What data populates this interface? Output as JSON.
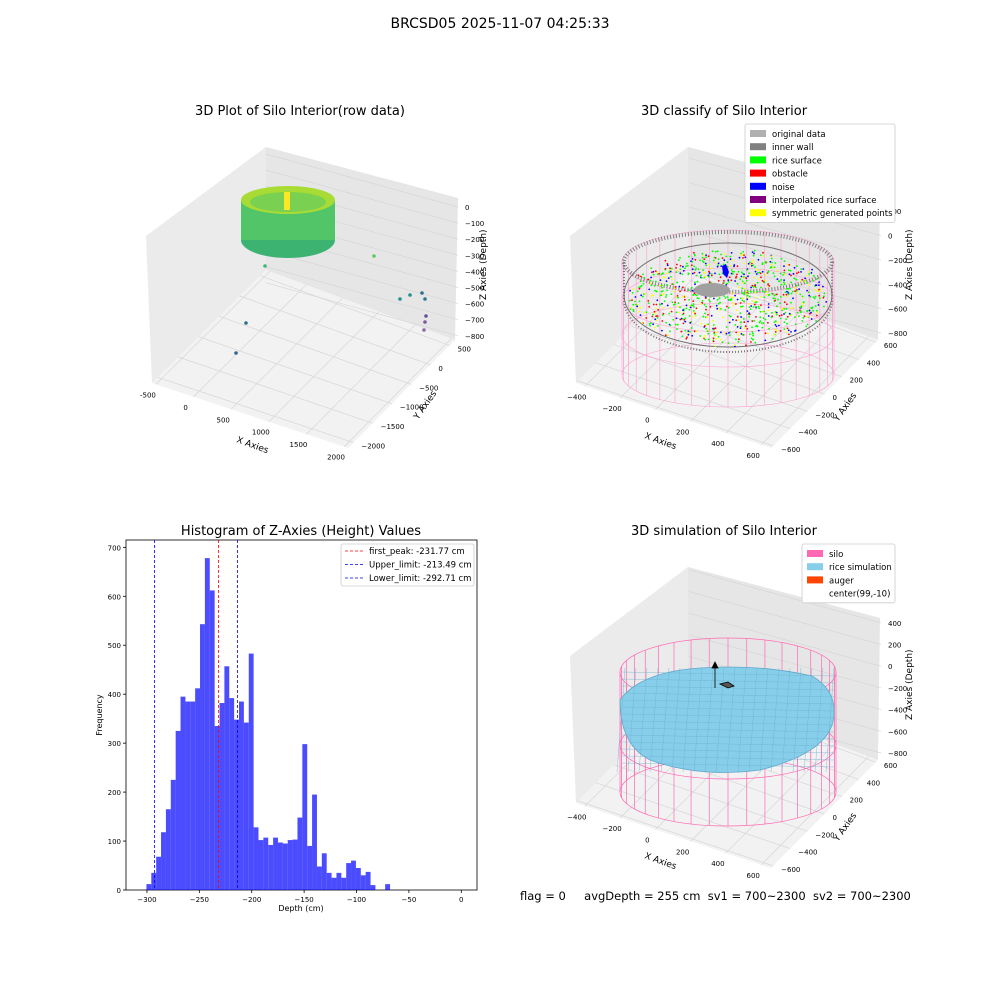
{
  "suptitle": "BRCSD05 2025-11-07 04:25:33",
  "footer": {
    "flag": "flag = 0",
    "avg_depth": "avgDepth = 255 cm",
    "sv1": "sv1 = 700~2300",
    "sv2": "sv2 = 700~2300"
  },
  "chart_data": [
    {
      "type": "scatter",
      "title": "3D Plot of Silo Interior(row data)",
      "xlabel": "X Axies",
      "ylabel": "Y Axies",
      "zlabel": "Z Axies (Depth)",
      "x_ticks": [
        "-500",
        "0",
        "500",
        "1000",
        "1500",
        "2000"
      ],
      "y_ticks": [
        "500",
        "0",
        "−500",
        "−1000",
        "−1500",
        "−2000"
      ],
      "z_ticks": [
        "0",
        "−100",
        "−200",
        "−300",
        "−400",
        "−500",
        "−600",
        "−700",
        "−800"
      ],
      "colormap": "viridis"
    },
    {
      "type": "scatter",
      "title": "3D classify of Silo Interior",
      "xlabel": "X Axies",
      "ylabel": "Y Axies",
      "zlabel": "Z Axies (Depth)",
      "x_ticks": [
        "−400",
        "−200",
        "0",
        "200",
        "400",
        "600"
      ],
      "y_ticks": [
        "600",
        "400",
        "200",
        "0",
        "−200",
        "−400",
        "−600"
      ],
      "z_ticks": [
        "200",
        "0",
        "−200",
        "−400",
        "−600",
        "−800"
      ],
      "legend": [
        {
          "label": "original data",
          "color": "#b0b0b0"
        },
        {
          "label": "inner wall",
          "color": "#808080"
        },
        {
          "label": "rice surface",
          "color": "#00ff00"
        },
        {
          "label": "obstacle",
          "color": "#ff0000"
        },
        {
          "label": "noise",
          "color": "#0000ff"
        },
        {
          "label": "interpolated rice surface",
          "color": "#800080"
        },
        {
          "label": "symmetric generated points",
          "color": "#ffff00"
        }
      ]
    },
    {
      "type": "bar",
      "title": "Histogram of Z-Axies (Height) Values",
      "xlabel": "Depth (cm)",
      "ylabel": "Frequency",
      "xlim": [
        -320,
        15
      ],
      "ylim": [
        0,
        715
      ],
      "x_ticks": [
        -300,
        -250,
        -200,
        -150,
        -100,
        -50,
        0
      ],
      "y_ticks": [
        0,
        100,
        200,
        300,
        400,
        500,
        600,
        700
      ],
      "bar_color": "#0000ff",
      "bin_start": -300.5,
      "bin_width": 4.65,
      "values": [
        12,
        35,
        68,
        118,
        165,
        225,
        325,
        395,
        385,
        385,
        412,
        543,
        678,
        612,
        335,
        382,
        457,
        392,
        348,
        385,
        342,
        483,
        128,
        102,
        107,
        92,
        107,
        97,
        95,
        102,
        103,
        148,
        298,
        90,
        195,
        48,
        75,
        35,
        25,
        35,
        25,
        55,
        60,
        45,
        30,
        37,
        10,
        0,
        0,
        12
      ],
      "lines": [
        {
          "label": "first_peak: -231.77 cm",
          "value": -231.77,
          "color": "#ff0000"
        },
        {
          "label": "Upper_limit: -213.49 cm",
          "value": -213.49,
          "color": "#0000ff"
        },
        {
          "label": "Lower_limit: -292.71 cm",
          "value": -292.71,
          "color": "#0000ff"
        }
      ]
    },
    {
      "type": "scatter",
      "title": "3D simulation of Silo Interior",
      "xlabel": "X Axies",
      "ylabel": "Y Axies",
      "zlabel": "Z Axies (Depth)",
      "x_ticks": [
        "−400",
        "−200",
        "0",
        "200",
        "400",
        "600"
      ],
      "y_ticks": [
        "600",
        "400",
        "200",
        "0",
        "−200",
        "−400",
        "−600"
      ],
      "z_ticks": [
        "400",
        "200",
        "0",
        "−200",
        "−400",
        "−600",
        "−800"
      ],
      "legend": [
        {
          "label": "silo",
          "color": "#ff69b4"
        },
        {
          "label": "rice simulation",
          "color": "#87ceeb"
        },
        {
          "label": "auger",
          "color": "#ff4500"
        },
        {
          "label": "center(99,-10)",
          "color": "#ffffff"
        }
      ]
    }
  ]
}
